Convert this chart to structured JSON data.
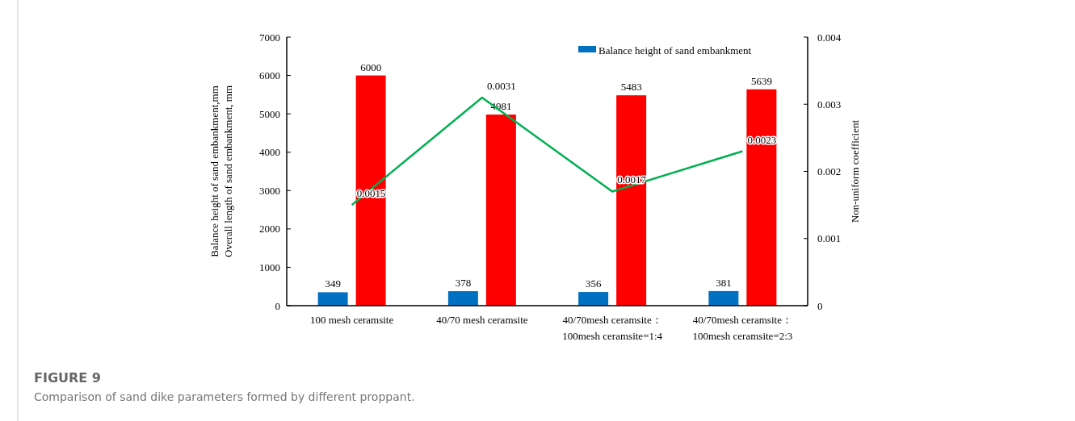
{
  "chart_data": {
    "type": "bar",
    "title": "FIGURE 9",
    "subtitle": "Comparison of sand dike parameters formed by different proppant.",
    "ylabel": "Balance height of sand embankment,mm\nOverall length of sand embankment,  mm",
    "y2label": "Non-uniform coefficient",
    "categories": [
      "100 mesh ceramsite",
      "40/70 mesh ceramsite",
      "40/70mesh ceramsite：\n100mesh ceramsite=1:4",
      "40/70mesh ceramsite：\n100mesh ceramsite=2:3"
    ],
    "series": [
      {
        "name": "Balance height of sand embankment",
        "color": "#0070c0",
        "values": [
          349,
          378,
          356,
          381
        ]
      },
      {
        "color": "#ff0000",
        "values": [
          6000,
          4981,
          5483,
          5639
        ]
      },
      {
        "type": "line",
        "axis": "y2",
        "color": "#00b050",
        "values": [
          0.0015,
          0.0031,
          0.0017,
          0.0023
        ]
      }
    ],
    "ylim": [
      0,
      7000
    ],
    "yticks": [
      0,
      1000,
      2000,
      3000,
      4000,
      5000,
      6000,
      7000
    ],
    "y2lim": [
      0,
      0.004
    ],
    "y2ticks": [
      0,
      0.001,
      0.002,
      0.003,
      0.004
    ],
    "data_labels": true,
    "legend": "top right",
    "grid": false
  }
}
